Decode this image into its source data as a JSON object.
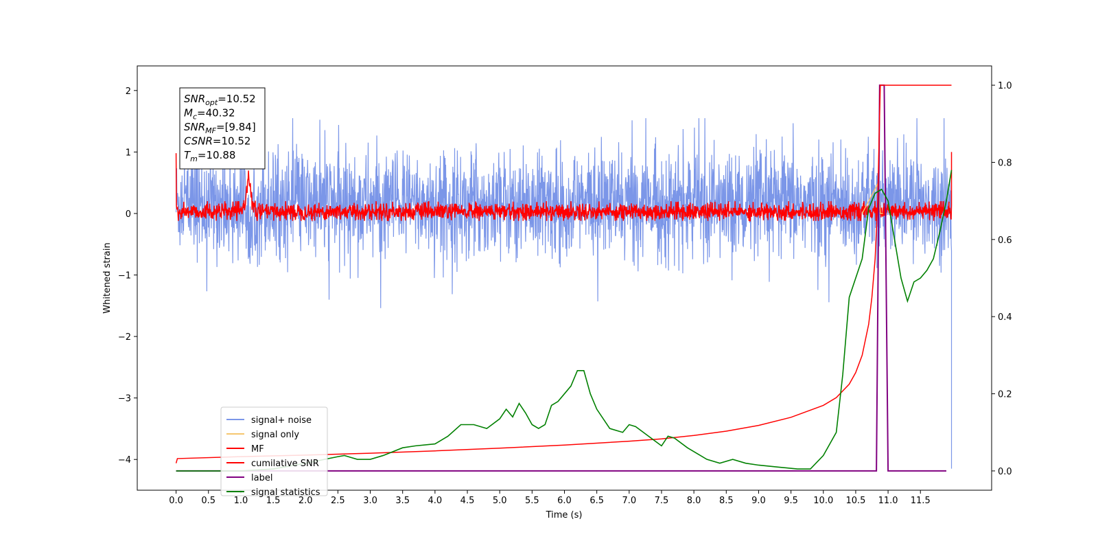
{
  "chart_data": {
    "type": "line",
    "xlabel": "Time (s)",
    "ylabel": "Whitened strain",
    "xlim": [
      -0.6,
      12.6
    ],
    "ylim": [
      -4.5,
      2.4
    ],
    "ylim_right": [
      -0.05,
      1.05
    ],
    "x_ticks": [
      0.0,
      0.5,
      1.0,
      1.5,
      2.0,
      2.5,
      3.0,
      3.5,
      4.0,
      4.5,
      5.0,
      5.5,
      6.0,
      6.5,
      7.0,
      7.5,
      8.0,
      8.5,
      9.0,
      9.5,
      10.0,
      10.5,
      11.0,
      11.5
    ],
    "x_tick_labels": [
      "0.0",
      "0.5",
      "1.0",
      "1.5",
      "2.0",
      "2.5",
      "3.0",
      "3.5",
      "4.0",
      "4.5",
      "5.0",
      "5.5",
      "6.0",
      "6.5",
      "7.0",
      "7.5",
      "8.0",
      "8.5",
      "9.0",
      "9.5",
      "10.0",
      "10.5",
      "11.0",
      "11.5"
    ],
    "y_ticks": [
      2,
      1,
      0,
      -1,
      -2,
      -3,
      -4
    ],
    "y_tick_labels": [
      "2",
      "1",
      "0",
      "−1",
      "−2",
      "−3",
      "−4"
    ],
    "y_right_ticks": [
      1.0,
      0.8,
      0.6,
      0.4,
      0.2,
      0.0
    ],
    "y_right_tick_labels": [
      "1.0",
      "0.8",
      "0.6",
      "0.4",
      "0.2",
      "0.0"
    ],
    "legend_placement": "lower-left",
    "info_box": {
      "lines": [
        {
          "base": "SNR",
          "sub": "opt",
          "value": "=10.52"
        },
        {
          "base": "M",
          "sub": "c",
          "value": "=40.32"
        },
        {
          "base": "SNR",
          "sub": "MF",
          "value": "=[9.84]"
        },
        {
          "base": "CSNR",
          "sub": "",
          "value": "=10.52"
        },
        {
          "base": "T",
          "sub": "m",
          "value": "=10.88"
        }
      ]
    },
    "series": [
      {
        "name": "signal+ noise",
        "color": "#7b96e8",
        "axis": "left",
        "time_range": [
          0.0,
          11.98
        ],
        "envelope_upper": 1.15,
        "envelope_lower": -1.15,
        "end_value": -4.15
      },
      {
        "name": "signal only",
        "color": "#f5c66e",
        "axis": "left",
        "x": [
          10.6,
          10.7,
          10.8,
          10.85,
          10.88,
          10.92
        ],
        "values": [
          0.0,
          0.2,
          0.4,
          0.5,
          0.0,
          0.0
        ]
      },
      {
        "name": "MF",
        "color": "#ff0000",
        "axis": "left",
        "time_range": [
          0.0,
          11.98
        ],
        "envelope_upper": 0.2,
        "envelope_lower": -0.12,
        "peaks": [
          {
            "x": 0.0,
            "y": 0.98
          },
          {
            "x": 1.12,
            "y": 0.62
          },
          {
            "x": 10.88,
            "y": 2.05
          },
          {
            "x": 11.98,
            "y": 1.0
          }
        ]
      },
      {
        "name": "cumilative SNR",
        "color": "#ff0000",
        "axis": "right",
        "x": [
          0.0,
          0.02,
          1.0,
          2.0,
          3.0,
          4.0,
          5.0,
          6.0,
          7.0,
          7.5,
          8.0,
          8.5,
          9.0,
          9.5,
          10.0,
          10.2,
          10.4,
          10.5,
          10.6,
          10.7,
          10.75,
          10.8,
          10.84,
          10.88,
          10.9,
          11.0,
          11.5,
          11.98
        ],
        "values": [
          0.02,
          0.032,
          0.037,
          0.041,
          0.046,
          0.052,
          0.059,
          0.067,
          0.077,
          0.083,
          0.092,
          0.103,
          0.118,
          0.139,
          0.17,
          0.19,
          0.225,
          0.255,
          0.3,
          0.38,
          0.45,
          0.55,
          0.7,
          1.0,
          1.0,
          1.0,
          1.0,
          1.0
        ]
      },
      {
        "name": "label",
        "color": "#800080",
        "axis": "right",
        "x": [
          0.0,
          10.82,
          10.87,
          10.94,
          11.0,
          11.9
        ],
        "values": [
          0.0,
          0.0,
          1.0,
          1.0,
          0.0,
          0.0
        ]
      },
      {
        "name": "signal statistics",
        "color": "#008000",
        "axis": "right",
        "x": [
          0.0,
          0.5,
          1.0,
          1.5,
          2.0,
          2.5,
          2.6,
          2.8,
          3.0,
          3.2,
          3.5,
          3.7,
          4.0,
          4.2,
          4.4,
          4.5,
          4.6,
          4.8,
          5.0,
          5.1,
          5.2,
          5.3,
          5.4,
          5.5,
          5.6,
          5.7,
          5.8,
          5.9,
          6.0,
          6.1,
          6.2,
          6.3,
          6.4,
          6.5,
          6.7,
          6.9,
          7.0,
          7.1,
          7.3,
          7.5,
          7.6,
          7.7,
          7.9,
          8.0,
          8.2,
          8.4,
          8.6,
          8.8,
          9.0,
          9.3,
          9.6,
          9.8,
          10.0,
          10.2,
          10.3,
          10.4,
          10.5,
          10.6,
          10.7,
          10.8,
          10.9,
          11.0,
          11.1,
          11.2,
          11.3,
          11.4,
          11.5,
          11.6,
          11.7,
          11.8,
          11.9,
          11.98
        ],
        "values": [
          0.0,
          0.0,
          0.0,
          0.005,
          0.02,
          0.037,
          0.04,
          0.03,
          0.03,
          0.04,
          0.06,
          0.065,
          0.07,
          0.09,
          0.12,
          0.12,
          0.12,
          0.11,
          0.135,
          0.16,
          0.14,
          0.175,
          0.15,
          0.12,
          0.11,
          0.12,
          0.17,
          0.18,
          0.2,
          0.22,
          0.26,
          0.26,
          0.2,
          0.16,
          0.11,
          0.1,
          0.12,
          0.115,
          0.09,
          0.065,
          0.09,
          0.085,
          0.06,
          0.05,
          0.03,
          0.02,
          0.03,
          0.02,
          0.015,
          0.01,
          0.005,
          0.005,
          0.04,
          0.1,
          0.25,
          0.45,
          0.5,
          0.55,
          0.68,
          0.72,
          0.73,
          0.7,
          0.6,
          0.5,
          0.44,
          0.49,
          0.5,
          0.52,
          0.55,
          0.62,
          0.7,
          0.78
        ]
      }
    ]
  }
}
